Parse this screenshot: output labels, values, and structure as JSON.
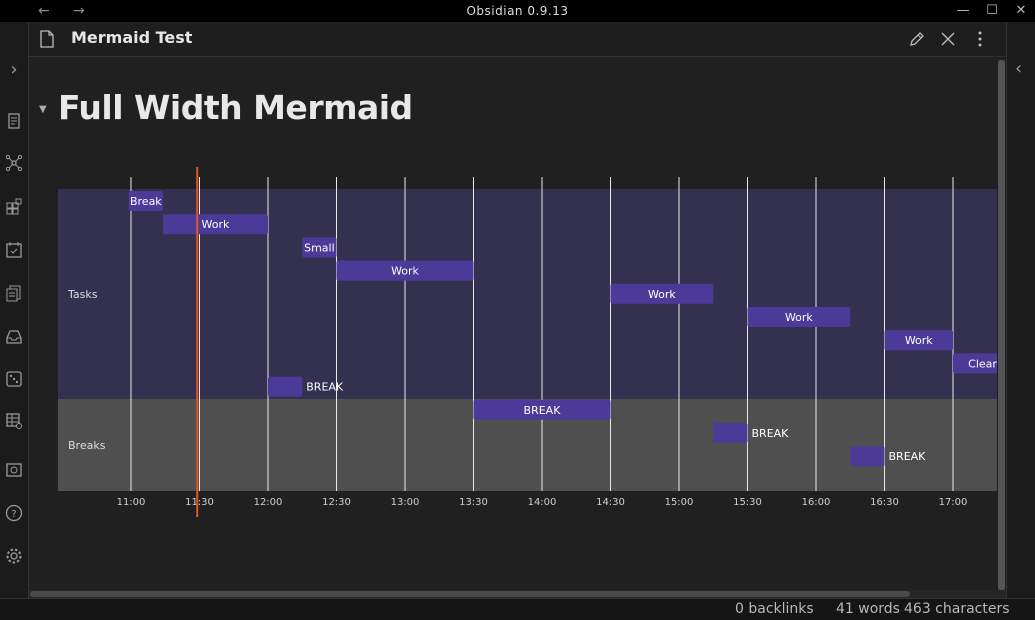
{
  "window": {
    "title": "Obsidian 0.9.13",
    "back_icon": "←",
    "forward_icon": "→",
    "minimize": "—",
    "maximize": "☐",
    "close": "✕"
  },
  "ribbon": {
    "expand_icon": "›",
    "items": [
      "open-file-icon",
      "graph-view-icon",
      "tag-pane-icon",
      "daily-note-icon",
      "templates-icon",
      "inbox-icon",
      "random-note-icon",
      "table-icon",
      "slides-icon",
      "help-icon",
      "settings-icon"
    ]
  },
  "right_sidebar": {
    "expand_icon": "‹"
  },
  "pane": {
    "title": "Mermaid Test",
    "edit_icon": "pencil-icon",
    "close_icon": "close-icon",
    "more_icon": "more-options-icon"
  },
  "document": {
    "heading": "Full Width Mermaid",
    "collapse_icon": "▼"
  },
  "chart_data": {
    "type": "gantt",
    "sections": [
      {
        "name": "Tasks",
        "color": "#34304f",
        "tasks": [
          {
            "name": "Break",
            "start": "10:59",
            "end": "11:14",
            "row": 0
          },
          {
            "name": "Work",
            "start": "11:14",
            "end": "12:00",
            "row": 1
          },
          {
            "name": "Small",
            "start": "12:15",
            "end": "12:30",
            "row": 2
          },
          {
            "name": "Work",
            "start": "12:30",
            "end": "13:30",
            "row": 3
          },
          {
            "name": "Work",
            "start": "14:30",
            "end": "15:15",
            "row": 4
          },
          {
            "name": "Work",
            "start": "15:30",
            "end": "16:15",
            "row": 5
          },
          {
            "name": "Work",
            "start": "16:30",
            "end": "17:00",
            "row": 6
          },
          {
            "name": "Cleanu",
            "start": "17:00",
            "end": "17:30",
            "row": 7
          }
        ]
      },
      {
        "name": "Breaks",
        "color": "#4f4f4f",
        "tasks": [
          {
            "name": "BREAK",
            "start": "12:00",
            "end": "12:15",
            "row": 8,
            "label_outside": true
          },
          {
            "name": "BREAK",
            "start": "13:30",
            "end": "14:30",
            "row": 9
          },
          {
            "name": "BREAK",
            "start": "15:15",
            "end": "15:30",
            "row": 10,
            "label_outside": true
          },
          {
            "name": "BREAK",
            "start": "16:15",
            "end": "16:30",
            "row": 11,
            "label_outside": true
          }
        ]
      }
    ],
    "ticks": [
      "11:00",
      "11:30",
      "12:00",
      "12:30",
      "13:00",
      "13:30",
      "14:00",
      "14:30",
      "15:00",
      "15:30",
      "16:00",
      "16:30",
      "17:00"
    ],
    "today_marker": "11:29",
    "bar_color": "#4c3a99",
    "marker_color": "#e0562a"
  },
  "status": {
    "backlinks": "0 backlinks",
    "words": "41 words",
    "characters": "463 characters"
  }
}
